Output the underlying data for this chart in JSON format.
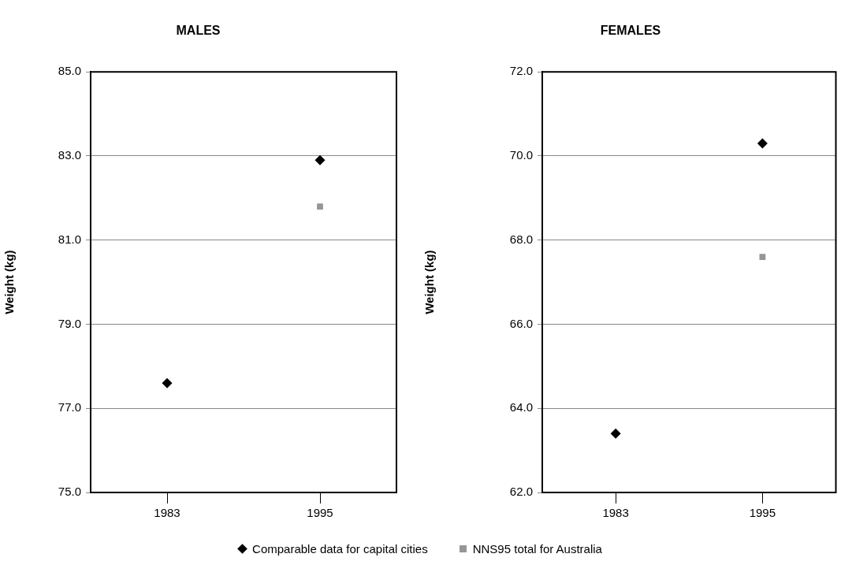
{
  "chart_data": [
    {
      "type": "scatter",
      "title": "MALES",
      "ylabel": "Weight (kg)",
      "categories": [
        "1983",
        "1995"
      ],
      "ylim": [
        75,
        85
      ],
      "yticks": [
        {
          "value": 75,
          "label": "75.0"
        },
        {
          "value": 77,
          "label": "77.0"
        },
        {
          "value": 79,
          "label": "79.0"
        },
        {
          "value": 81,
          "label": "81.0"
        },
        {
          "value": 83,
          "label": "83.0"
        },
        {
          "value": 85,
          "label": "85.0"
        }
      ],
      "grid": "y",
      "legend": "bottom",
      "series": [
        {
          "name": "Comparable data for capital cities",
          "color": "#000000",
          "marker": "diamond",
          "values": [
            77.6,
            82.9
          ]
        },
        {
          "name": "NNS95 total for Australia",
          "color": "#969696",
          "marker": "square",
          "values": [
            null,
            81.8
          ]
        }
      ]
    },
    {
      "type": "scatter",
      "title": "FEMALES",
      "ylabel": "Weight (kg)",
      "categories": [
        "1983",
        "1995"
      ],
      "ylim": [
        62,
        72
      ],
      "yticks": [
        {
          "value": 62,
          "label": "62.0"
        },
        {
          "value": 64,
          "label": "64.0"
        },
        {
          "value": 66,
          "label": "66.0"
        },
        {
          "value": 68,
          "label": "68.0"
        },
        {
          "value": 70,
          "label": "70.0"
        },
        {
          "value": 72,
          "label": "72.0"
        }
      ],
      "grid": "y",
      "series": [
        {
          "color": "#000000",
          "marker": "diamond",
          "values": [
            63.4,
            70.3
          ]
        },
        {
          "color": "#969696",
          "marker": "square",
          "values": [
            null,
            67.6
          ]
        }
      ]
    }
  ]
}
